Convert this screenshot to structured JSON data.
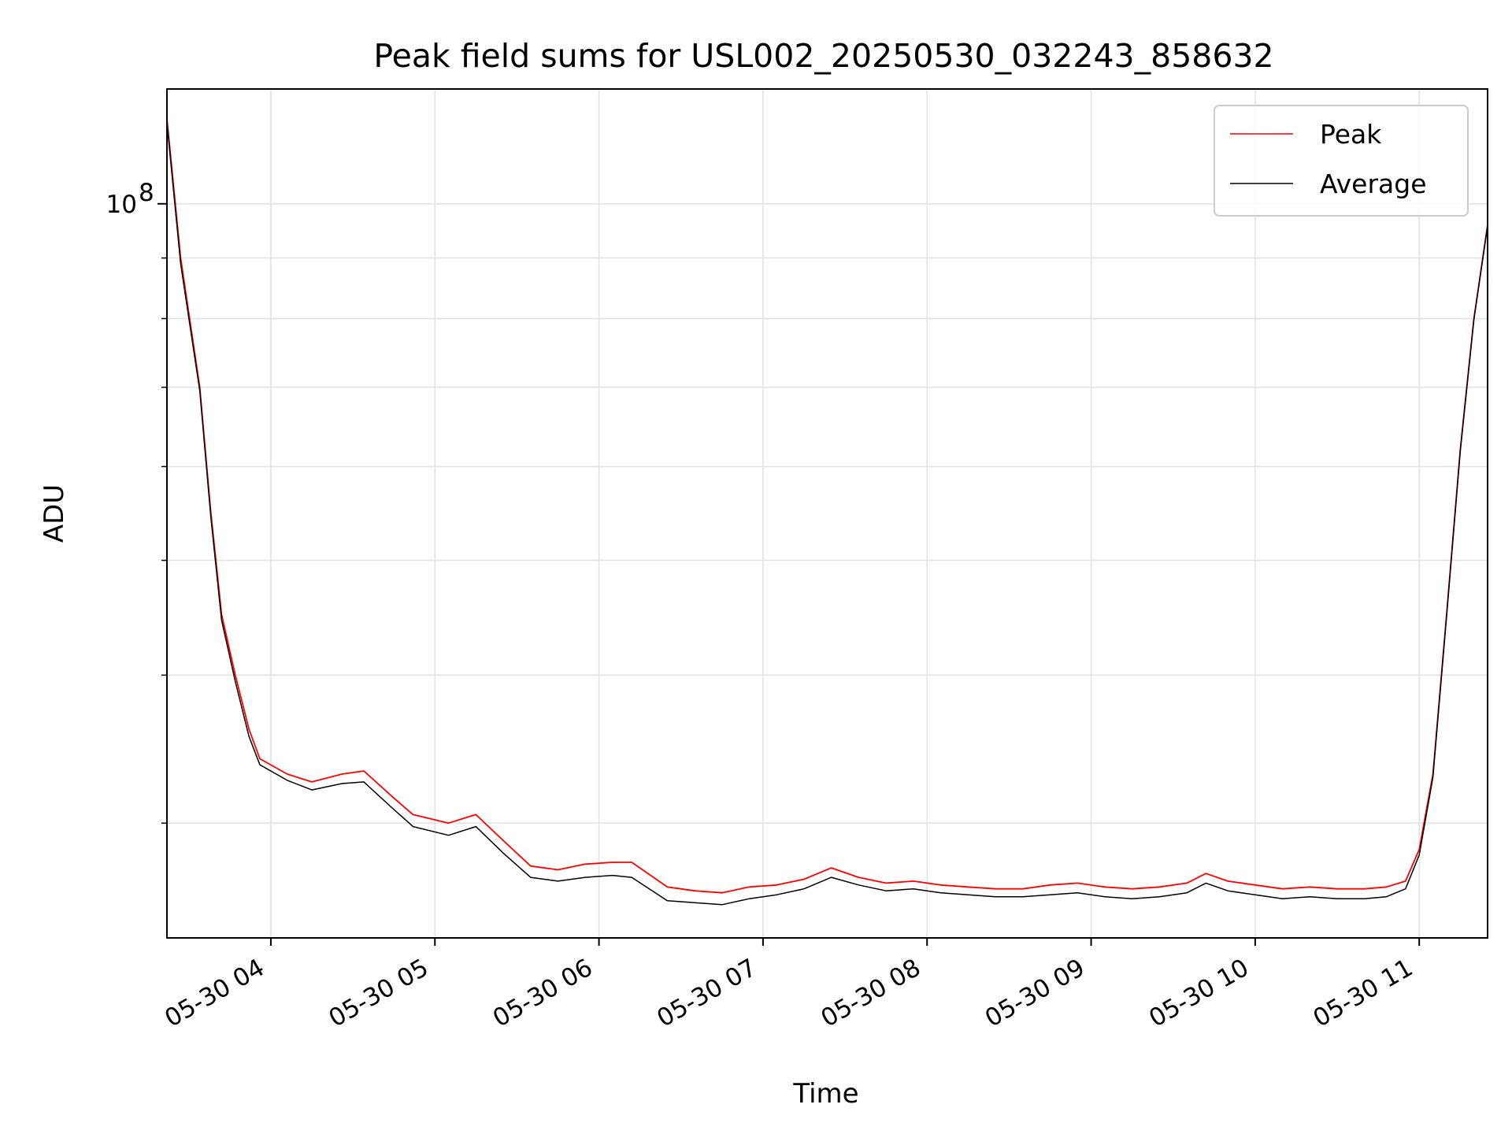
{
  "chart_data": {
    "type": "line",
    "title": "Peak field sums for USL002_20250530_032243_858632",
    "xlabel": "Time",
    "ylabel": "ADU",
    "y_scale": "log",
    "grid": true,
    "legend_position": "top-right",
    "x_ticks": [
      "05-30 04",
      "05-30 05",
      "05-30 06",
      "05-30 07",
      "05-30 08",
      "05-30 09",
      "05-30 10",
      "05-30 11"
    ],
    "y_tick_label": {
      "base": "10",
      "exponent": "8"
    },
    "xlim": [
      "2025-05-30T03:22",
      "2025-05-30T11:25"
    ],
    "ylim": [
      24000000,
      125000000
    ],
    "series": [
      {
        "name": "Peak",
        "color": "#ff0000",
        "x": [
          "2025-05-30T03:22",
          "2025-05-30T03:27",
          "2025-05-30T03:34",
          "2025-05-30T03:38",
          "2025-05-30T03:42",
          "2025-05-30T03:47",
          "2025-05-30T03:52",
          "2025-05-30T03:56",
          "2025-05-30T04:06",
          "2025-05-30T04:15",
          "2025-05-30T04:26",
          "2025-05-30T04:34",
          "2025-05-30T04:45",
          "2025-05-30T04:52",
          "2025-05-30T05:05",
          "2025-05-30T05:15",
          "2025-05-30T05:25",
          "2025-05-30T05:35",
          "2025-05-30T05:45",
          "2025-05-30T05:55",
          "2025-05-30T06:05",
          "2025-05-30T06:12",
          "2025-05-30T06:25",
          "2025-05-30T06:35",
          "2025-05-30T06:45",
          "2025-05-30T06:55",
          "2025-05-30T07:05",
          "2025-05-30T07:15",
          "2025-05-30T07:25",
          "2025-05-30T07:35",
          "2025-05-30T07:45",
          "2025-05-30T07:55",
          "2025-05-30T08:05",
          "2025-05-30T08:15",
          "2025-05-30T08:25",
          "2025-05-30T08:35",
          "2025-05-30T08:45",
          "2025-05-30T08:55",
          "2025-05-30T09:05",
          "2025-05-30T09:15",
          "2025-05-30T09:25",
          "2025-05-30T09:35",
          "2025-05-30T09:42",
          "2025-05-30T09:50",
          "2025-05-30T10:00",
          "2025-05-30T10:10",
          "2025-05-30T10:20",
          "2025-05-30T10:30",
          "2025-05-30T10:40",
          "2025-05-30T10:48",
          "2025-05-30T10:55",
          "2025-05-30T11:00",
          "2025-05-30T11:05",
          "2025-05-30T11:10",
          "2025-05-30T11:15",
          "2025-05-30T11:20",
          "2025-05-30T11:25"
        ],
        "y": [
          118000000,
          90000000,
          70000000,
          55000000,
          45000000,
          40000000,
          36000000,
          34000000,
          33000000,
          32500000,
          33000000,
          33200000,
          31500000,
          30500000,
          30000000,
          30500000,
          29000000,
          27600000,
          27400000,
          27700000,
          27800000,
          27800000,
          26500000,
          26300000,
          26200000,
          26500000,
          26600000,
          26900000,
          27500000,
          27000000,
          26700000,
          26800000,
          26600000,
          26500000,
          26400000,
          26400000,
          26600000,
          26700000,
          26500000,
          26400000,
          26500000,
          26700000,
          27200000,
          26800000,
          26600000,
          26400000,
          26500000,
          26400000,
          26400000,
          26500000,
          26800000,
          28500000,
          33000000,
          45000000,
          62000000,
          80000000,
          96000000
        ]
      },
      {
        "name": "Average",
        "color": "#000000",
        "x": [
          "2025-05-30T03:22",
          "2025-05-30T03:27",
          "2025-05-30T03:34",
          "2025-05-30T03:38",
          "2025-05-30T03:42",
          "2025-05-30T03:47",
          "2025-05-30T03:52",
          "2025-05-30T03:56",
          "2025-05-30T04:06",
          "2025-05-30T04:15",
          "2025-05-30T04:26",
          "2025-05-30T04:34",
          "2025-05-30T04:45",
          "2025-05-30T04:52",
          "2025-05-30T05:05",
          "2025-05-30T05:15",
          "2025-05-30T05:25",
          "2025-05-30T05:35",
          "2025-05-30T05:45",
          "2025-05-30T05:55",
          "2025-05-30T06:05",
          "2025-05-30T06:12",
          "2025-05-30T06:25",
          "2025-05-30T06:35",
          "2025-05-30T06:45",
          "2025-05-30T06:55",
          "2025-05-30T07:05",
          "2025-05-30T07:15",
          "2025-05-30T07:25",
          "2025-05-30T07:35",
          "2025-05-30T07:45",
          "2025-05-30T07:55",
          "2025-05-30T08:05",
          "2025-05-30T08:15",
          "2025-05-30T08:25",
          "2025-05-30T08:35",
          "2025-05-30T08:45",
          "2025-05-30T08:55",
          "2025-05-30T09:05",
          "2025-05-30T09:15",
          "2025-05-30T09:25",
          "2025-05-30T09:35",
          "2025-05-30T09:42",
          "2025-05-30T09:50",
          "2025-05-30T10:00",
          "2025-05-30T10:10",
          "2025-05-30T10:20",
          "2025-05-30T10:30",
          "2025-05-30T10:40",
          "2025-05-30T10:48",
          "2025-05-30T10:55",
          "2025-05-30T11:00",
          "2025-05-30T11:05",
          "2025-05-30T11:10",
          "2025-05-30T11:15",
          "2025-05-30T11:20",
          "2025-05-30T11:25"
        ],
        "y": [
          117000000,
          89000000,
          69500000,
          54500000,
          44500000,
          39500000,
          35500000,
          33600000,
          32600000,
          32000000,
          32400000,
          32500000,
          30800000,
          29800000,
          29300000,
          29800000,
          28300000,
          27000000,
          26800000,
          27000000,
          27100000,
          27000000,
          25800000,
          25700000,
          25600000,
          25900000,
          26100000,
          26400000,
          27000000,
          26600000,
          26300000,
          26400000,
          26200000,
          26100000,
          26000000,
          26000000,
          26100000,
          26200000,
          26000000,
          25900000,
          26000000,
          26200000,
          26700000,
          26300000,
          26100000,
          25900000,
          26000000,
          25900000,
          25900000,
          26000000,
          26400000,
          28200000,
          32800000,
          44800000,
          61800000,
          79800000,
          95800000
        ]
      }
    ]
  }
}
